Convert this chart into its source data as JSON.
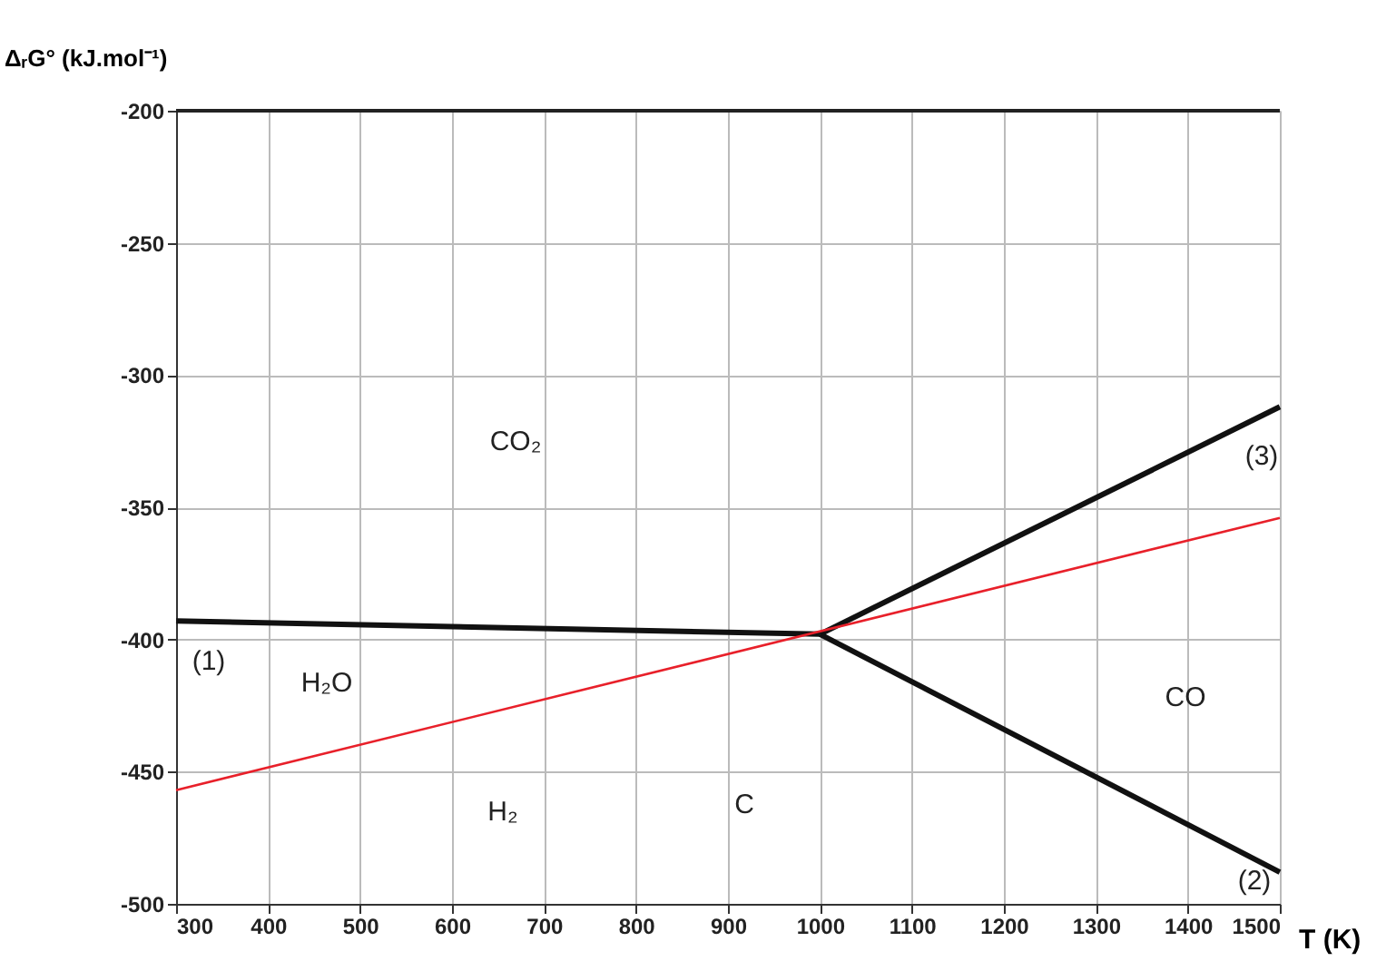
{
  "chart_data": {
    "type": "line",
    "xlabel": "T (K)",
    "ylabel": "ΔᵣG° (kJ.mol⁻¹)",
    "xlim": [
      300,
      1500
    ],
    "xticks": [
      300,
      400,
      500,
      600,
      700,
      800,
      900,
      1000,
      1100,
      1200,
      1300,
      1400,
      1500
    ],
    "ylim": [
      -500,
      -200
    ],
    "yticks": [
      -500,
      -450,
      -400,
      -350,
      -300,
      -250,
      -200
    ],
    "grid": true,
    "legend": false,
    "marker": "none",
    "line_style": "solid",
    "series": [
      {
        "color": "#111111",
        "x": [
          300,
          1000
        ],
        "values": [
          -393,
          -398
        ]
      },
      {
        "color": "#111111",
        "x": [
          1000,
          1500
        ],
        "values": [
          -398,
          -312
        ]
      },
      {
        "color": "#111111",
        "x": [
          1000,
          1500
        ],
        "values": [
          -398,
          -488
        ]
      },
      {
        "color": "#e8202a",
        "x": [
          300,
          1500
        ],
        "values": [
          -457,
          -354
        ]
      }
    ],
    "annotations": [
      "CO₂",
      "H₂O",
      "H₂",
      "C",
      "CO",
      "(1)",
      "(2)",
      "(3)"
    ]
  }
}
